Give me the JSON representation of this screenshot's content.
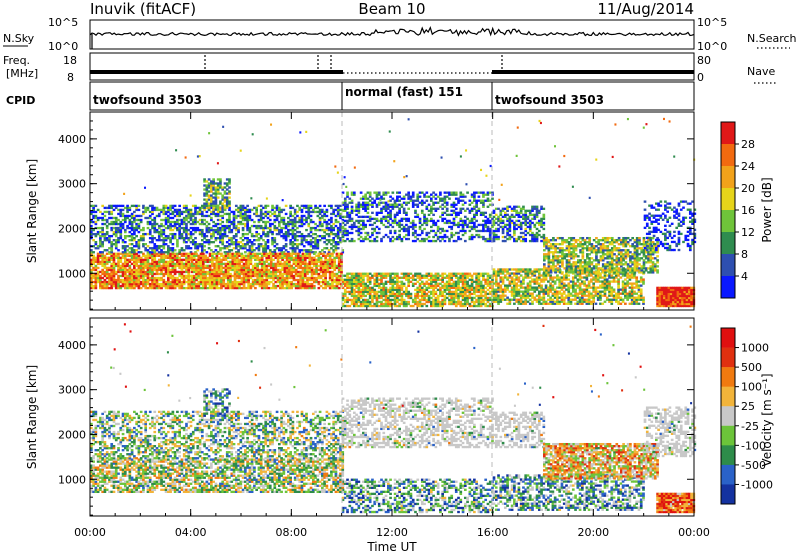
{
  "header": {
    "station": "Inuvik (fitACF)",
    "beam": "Beam 10",
    "date": "11/Aug/2014"
  },
  "summary_panels": {
    "nsky": {
      "label": "N.Sky",
      "ticks": [
        "10^5",
        "10^0"
      ],
      "right_label": "N.Search",
      "right_ticks": [
        "10^5",
        "10^0"
      ]
    },
    "freq": {
      "label_line1": "Freq.",
      "label_line2": "[MHz]",
      "ticks": [
        "18",
        "8"
      ],
      "right_label": "Nave",
      "right_ticks": [
        "80",
        "0"
      ]
    },
    "cpid": {
      "label": "CPID",
      "segments": [
        {
          "name": "twofsound 3503",
          "start": 0,
          "end": 10
        },
        {
          "name": "normal (fast) 151",
          "start": 10,
          "end": 16
        },
        {
          "name": "twofsound 3503",
          "start": 16,
          "end": 24
        }
      ]
    }
  },
  "chart_data": [
    {
      "type": "heatmap",
      "title": "",
      "xlabel": "Time UT",
      "ylabel": "Slant Range [km]",
      "xlim": [
        0,
        24
      ],
      "ylim": [
        180,
        4600
      ],
      "x_ticks": [
        "00:00",
        "04:00",
        "08:00",
        "12:00",
        "16:00",
        "20:00",
        "00:00"
      ],
      "y_ticks": [
        1000,
        2000,
        3000,
        4000
      ],
      "colorbar": {
        "label": "Power [dB]",
        "ticks": [
          "4",
          "8",
          "12",
          "16",
          "20",
          "24",
          "28"
        ],
        "colors": [
          "#0a18ff",
          "#2e4fb0",
          "#2f8c4f",
          "#6fc43a",
          "#e6d41a",
          "#f2a21a",
          "#f26a10",
          "#e01818"
        ]
      },
      "scatter_regions": [
        {
          "t0": 0.0,
          "t1": 4.0,
          "r0": 650,
          "r1": 1450,
          "c": [
            0.72,
            0.85,
            0.8
          ]
        },
        {
          "t0": 0.0,
          "t1": 10.0,
          "r0": 1450,
          "r1": 2500,
          "c": [
            0.25,
            0.55,
            0.72
          ]
        },
        {
          "t0": 4.0,
          "t1": 10.0,
          "r0": 650,
          "r1": 1450,
          "c": [
            0.7,
            0.85,
            0.9
          ]
        },
        {
          "t0": 4.5,
          "t1": 5.5,
          "r0": 2400,
          "r1": 3100,
          "c": [
            0.4,
            0.65,
            0.8
          ]
        },
        {
          "t0": 10.0,
          "t1": 16.0,
          "r0": 1700,
          "r1": 2800,
          "c": [
            0.2,
            0.45,
            0.7
          ]
        },
        {
          "t0": 10.0,
          "t1": 16.0,
          "r0": 250,
          "r1": 1000,
          "c": [
            0.55,
            0.75,
            0.85
          ]
        },
        {
          "t0": 16.0,
          "t1": 18.0,
          "r0": 1700,
          "r1": 2500,
          "c": [
            0.25,
            0.55,
            0.72
          ]
        },
        {
          "t0": 16.0,
          "t1": 22.0,
          "r0": 300,
          "r1": 1100,
          "c": [
            0.5,
            0.7,
            0.8
          ]
        },
        {
          "t0": 18.0,
          "t1": 22.5,
          "r0": 1000,
          "r1": 1800,
          "c": [
            0.45,
            0.7,
            0.85
          ]
        },
        {
          "t0": 22.5,
          "t1": 24.0,
          "r0": 250,
          "r1": 700,
          "c": [
            0.9,
            1.0,
            1.0
          ]
        },
        {
          "t0": 22.0,
          "t1": 24.0,
          "r0": 1500,
          "r1": 2600,
          "c": [
            0.1,
            0.3,
            0.6
          ]
        }
      ]
    },
    {
      "type": "heatmap",
      "title": "",
      "xlabel": "Time UT",
      "ylabel": "Slant Range [km]",
      "xlim": [
        0,
        24
      ],
      "ylim": [
        180,
        4600
      ],
      "x_ticks": [
        "00:00",
        "04:00",
        "08:00",
        "12:00",
        "16:00",
        "20:00",
        "00:00"
      ],
      "y_ticks": [
        1000,
        2000,
        3000,
        4000
      ],
      "colorbar": {
        "label": "Velocity [m s⁻¹]",
        "ticks": [
          "1000",
          "500",
          "100",
          "25",
          "-25",
          "-100",
          "-500",
          "-1000"
        ],
        "colors": [
          "#1432a0",
          "#2a62c8",
          "#2e8c4a",
          "#6cc43a",
          "#c8c8c8",
          "#f2b43a",
          "#f07a10",
          "#e03010",
          "#e01010"
        ]
      },
      "scatter_regions": [
        {
          "t0": 0.0,
          "t1": 10.0,
          "r0": 700,
          "r1": 1450,
          "c": [
            0.45,
            0.7,
            0.82
          ]
        },
        {
          "t0": 0.0,
          "t1": 10.0,
          "r0": 1450,
          "r1": 2500,
          "c": [
            0.4,
            0.5,
            0.6
          ]
        },
        {
          "t0": 4.5,
          "t1": 5.5,
          "r0": 2400,
          "r1": 3000,
          "c": [
            0.3,
            0.5,
            0.6
          ]
        },
        {
          "t0": 10.0,
          "t1": 16.0,
          "r0": 1700,
          "r1": 2800,
          "c": [
            0.42,
            0.5,
            0.58
          ]
        },
        {
          "t0": 10.0,
          "t1": 16.0,
          "r0": 250,
          "r1": 1000,
          "c": [
            0.3,
            0.5,
            0.65
          ]
        },
        {
          "t0": 16.0,
          "t1": 18.0,
          "r0": 1700,
          "r1": 2500,
          "c": [
            0.42,
            0.5,
            0.58
          ]
        },
        {
          "t0": 16.0,
          "t1": 22.0,
          "r0": 300,
          "r1": 1100,
          "c": [
            0.3,
            0.55,
            0.7
          ]
        },
        {
          "t0": 18.0,
          "t1": 22.5,
          "r0": 1000,
          "r1": 1800,
          "c": [
            0.6,
            0.8,
            0.9
          ]
        },
        {
          "t0": 22.5,
          "t1": 24.0,
          "r0": 250,
          "r1": 700,
          "c": [
            0.8,
            0.95,
            1.0
          ]
        },
        {
          "t0": 22.0,
          "t1": 24.0,
          "r0": 1500,
          "r1": 2600,
          "c": [
            0.4,
            0.5,
            0.58
          ]
        }
      ]
    }
  ]
}
